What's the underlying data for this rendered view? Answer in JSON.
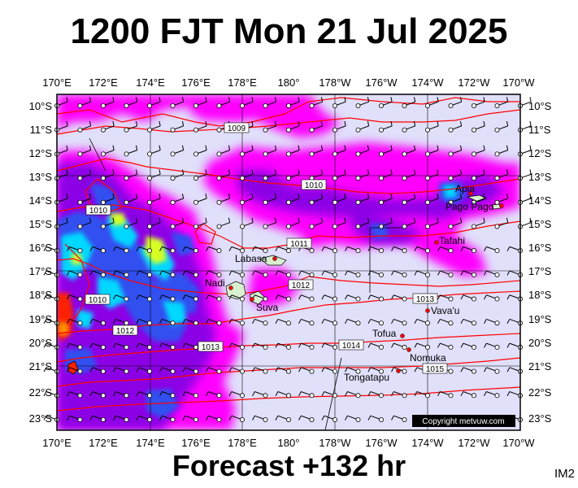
{
  "title": "1200 FJT Mon 21 Jul 2025",
  "footer": "Forecast +132 hr",
  "image_code": "IM2",
  "copyright": "Copyright metvuw.com",
  "lon_labels": [
    "170°E",
    "172°E",
    "174°E",
    "176°E",
    "178°E",
    "180°",
    "178°W",
    "176°W",
    "174°W",
    "172°W",
    "170°W"
  ],
  "lat_labels": [
    "10°S",
    "11°S",
    "12°S",
    "13°S",
    "14°S",
    "15°S",
    "16°S",
    "17°S",
    "18°S",
    "19°S",
    "20°S",
    "21°S",
    "22°S",
    "23°S"
  ],
  "places": [
    {
      "name": "Apia",
      "lon": -171.8,
      "lat": -13.8
    },
    {
      "name": "Pago Pago",
      "lon": -170.7,
      "lat": -14.3
    },
    {
      "name": "Tafahi",
      "lon": -173.7,
      "lat": -15.85
    },
    {
      "name": "Labasa",
      "lon": 179.4,
      "lat": -16.4
    },
    {
      "name": "Nadi",
      "lon": 177.45,
      "lat": -17.75
    },
    {
      "name": "Suva",
      "lon": 178.45,
      "lat": -18.1
    },
    {
      "name": "Vava'u",
      "lon": -174.0,
      "lat": -18.65
    },
    {
      "name": "Tofua",
      "lon": -175.05,
      "lat": -19.75
    },
    {
      "name": "Nomuka",
      "lon": -174.8,
      "lat": -20.25
    },
    {
      "name": "Tongatapu",
      "lon": -175.2,
      "lat": -21.15
    }
  ],
  "isobar_labels": [
    "1009",
    "1010",
    "1010",
    "1011",
    "1012",
    "1010",
    "1012",
    "1013",
    "1013",
    "1014",
    "1015"
  ],
  "colors": {
    "background": "#e0e0fb",
    "rain_light": "#ff00ff",
    "rain_medium": "#8c00e6",
    "rain_heavy": "#3050f0",
    "rain_veryheavy": "#00d8ff",
    "rain_extreme": "#d8ff20",
    "rain_max": "#ff2000",
    "isobar": "#ff0000",
    "coast": "#000000"
  }
}
